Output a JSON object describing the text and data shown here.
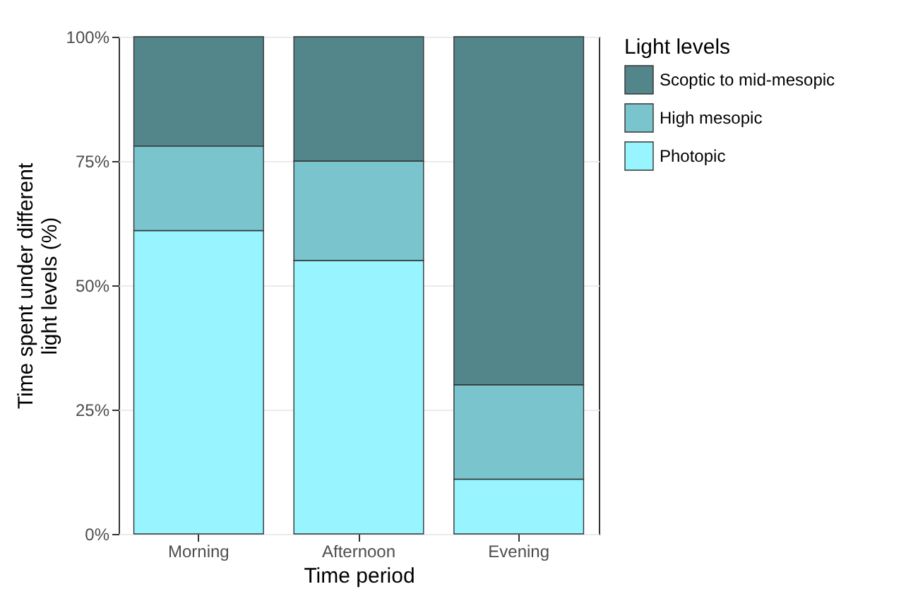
{
  "chart_data": {
    "type": "bar",
    "stacked": true,
    "xlabel": "Time period",
    "ylabel": "Time spent under different light levels (%)",
    "legend_title": "Light levels",
    "legend": "right",
    "grid": true,
    "categories": [
      "Morning",
      "Afternoon",
      "Evening"
    ],
    "ylim": [
      0,
      100
    ],
    "yticks": [
      {
        "value": 0,
        "label": "0%"
      },
      {
        "value": 25,
        "label": "25%"
      },
      {
        "value": 50,
        "label": "50%"
      },
      {
        "value": 75,
        "label": "75%"
      },
      {
        "value": 100,
        "label": "100%"
      }
    ],
    "series": [
      {
        "name": "Photopic",
        "color": "#98f5ff",
        "values": [
          61,
          55,
          11
        ]
      },
      {
        "name": "High mesopic",
        "color": "#7ac5cd",
        "values": [
          17,
          20,
          19
        ]
      },
      {
        "name": "Scoptic to mid-mesopic",
        "color": "#53868b",
        "values": [
          22,
          25,
          70
        ]
      }
    ]
  }
}
